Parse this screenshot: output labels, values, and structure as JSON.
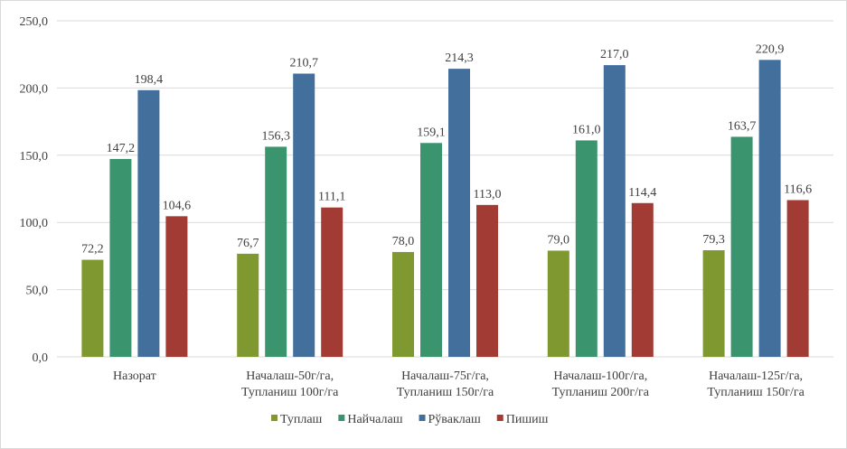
{
  "chart_data": {
    "type": "bar",
    "title": "",
    "xlabel": "",
    "ylabel": "",
    "ylim": [
      0,
      250
    ],
    "yticks": [
      "0,0",
      "50,0",
      "100,0",
      "150,0",
      "200,0",
      "250,0"
    ],
    "grid": true,
    "legend_position": "bottom",
    "categories": [
      [
        "Назорат"
      ],
      [
        "Началаш-50г/га,",
        "Тупланиш  100г/га"
      ],
      [
        "Началаш-75г/га,",
        "Тупланиш  150г/га"
      ],
      [
        "Началаш-100г/га,",
        "Тупланиш  200г/га"
      ],
      [
        "Началаш-125г/га,",
        "Тупланиш  150г/га"
      ]
    ],
    "series": [
      {
        "name": "Туплаш",
        "color": "#7f982f",
        "values": [
          72.2,
          76.7,
          78.0,
          79.0,
          79.3
        ],
        "labels": [
          "72,2",
          "76,7",
          "78,0",
          "79,0",
          "79,3"
        ]
      },
      {
        "name": "Найчалаш",
        "color": "#3a956e",
        "values": [
          147.2,
          156.3,
          159.1,
          161.0,
          163.7
        ],
        "labels": [
          "147,2",
          "156,3",
          "159,1",
          "161,0",
          "163,7"
        ]
      },
      {
        "name": "Рўваклаш",
        "color": "#436f9c",
        "values": [
          198.4,
          210.7,
          214.3,
          217.0,
          220.9
        ],
        "labels": [
          "198,4",
          "210,7",
          "214,3",
          "217,0",
          "220,9"
        ]
      },
      {
        "name": "Пишиш",
        "color": "#a23b33",
        "values": [
          104.6,
          111.1,
          113.0,
          114.4,
          116.6
        ],
        "labels": [
          "104,6",
          "111,1",
          "113,0",
          "114,4",
          "116,6"
        ]
      }
    ]
  }
}
